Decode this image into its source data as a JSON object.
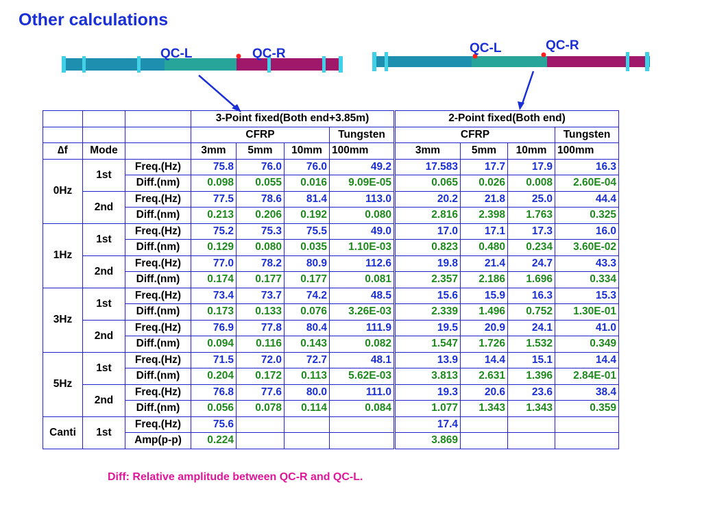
{
  "title": "Other calculations",
  "diagram": {
    "left_labels": [
      "QC-L",
      "QC-R"
    ],
    "right_labels": [
      "QC-L",
      "QC-R"
    ]
  },
  "table": {
    "group_headers": [
      "3-Point fixed(Both end+3.85m)",
      "2-Point fixed(Both end)"
    ],
    "material_headers": [
      "CFRP",
      "Tungsten",
      "CFRP",
      "Tungsten"
    ],
    "col_headers": [
      "∆f",
      "Mode",
      "3mm",
      "5mm",
      "10mm",
      "100mm",
      "3mm",
      "5mm",
      "10mm",
      "100mm"
    ],
    "groups": [
      {
        "df": "0Hz",
        "modes": [
          {
            "mode": "1st",
            "rows": [
              {
                "label": "Freq.(Hz)",
                "kind": "freq",
                "values": [
                  "75.8",
                  "76.0",
                  "76.0",
                  "49.2",
                  "17.583",
                  "17.7",
                  "17.9",
                  "16.3"
                ]
              },
              {
                "label": "Diff.(nm)",
                "kind": "diff",
                "values": [
                  "0.098",
                  "0.055",
                  "0.016",
                  "9.09E-05",
                  "0.065",
                  "0.026",
                  "0.008",
                  "2.60E-04"
                ]
              }
            ]
          },
          {
            "mode": "2nd",
            "rows": [
              {
                "label": "Freq.(Hz)",
                "kind": "freq",
                "values": [
                  "77.5",
                  "78.6",
                  "81.4",
                  "113.0",
                  "20.2",
                  "21.8",
                  "25.0",
                  "44.4"
                ]
              },
              {
                "label": "Diff.(nm)",
                "kind": "diff",
                "values": [
                  "0.213",
                  "0.206",
                  "0.192",
                  "0.080",
                  "2.816",
                  "2.398",
                  "1.763",
                  "0.325"
                ]
              }
            ]
          }
        ]
      },
      {
        "df": "1Hz",
        "modes": [
          {
            "mode": "1st",
            "rows": [
              {
                "label": "Freq.(Hz)",
                "kind": "freq",
                "values": [
                  "75.2",
                  "75.3",
                  "75.5",
                  "49.0",
                  "17.0",
                  "17.1",
                  "17.3",
                  "16.0"
                ]
              },
              {
                "label": "Diff.(nm)",
                "kind": "diff",
                "values": [
                  "0.129",
                  "0.080",
                  "0.035",
                  "1.10E-03",
                  "0.823",
                  "0.480",
                  "0.234",
                  "3.60E-02"
                ]
              }
            ]
          },
          {
            "mode": "2nd",
            "rows": [
              {
                "label": "Freq.(Hz)",
                "kind": "freq",
                "values": [
                  "77.0",
                  "78.2",
                  "80.9",
                  "112.6",
                  "19.8",
                  "21.4",
                  "24.7",
                  "43.3"
                ]
              },
              {
                "label": "Diff.(nm)",
                "kind": "diff",
                "values": [
                  "0.174",
                  "0.177",
                  "0.177",
                  "0.081",
                  "2.357",
                  "2.186",
                  "1.696",
                  "0.334"
                ]
              }
            ]
          }
        ]
      },
      {
        "df": "3Hz",
        "modes": [
          {
            "mode": "1st",
            "rows": [
              {
                "label": "Freq.(Hz)",
                "kind": "freq",
                "values": [
                  "73.4",
                  "73.7",
                  "74.2",
                  "48.5",
                  "15.6",
                  "15.9",
                  "16.3",
                  "15.3"
                ]
              },
              {
                "label": "Diff.(nm)",
                "kind": "diff",
                "values": [
                  "0.173",
                  "0.133",
                  "0.076",
                  "3.26E-03",
                  "2.339",
                  "1.496",
                  "0.752",
                  "1.30E-01"
                ]
              }
            ]
          },
          {
            "mode": "2nd",
            "rows": [
              {
                "label": "Freq.(Hz)",
                "kind": "freq",
                "values": [
                  "76.9",
                  "77.8",
                  "80.4",
                  "111.9",
                  "19.5",
                  "20.9",
                  "24.1",
                  "41.0"
                ]
              },
              {
                "label": "Diff.(nm)",
                "kind": "diff",
                "values": [
                  "0.094",
                  "0.116",
                  "0.143",
                  "0.082",
                  "1.547",
                  "1.726",
                  "1.532",
                  "0.349"
                ]
              }
            ]
          }
        ]
      },
      {
        "df": "5Hz",
        "modes": [
          {
            "mode": "1st",
            "rows": [
              {
                "label": "Freq.(Hz)",
                "kind": "freq",
                "values": [
                  "71.5",
                  "72.0",
                  "72.7",
                  "48.1",
                  "13.9",
                  "14.4",
                  "15.1",
                  "14.4"
                ]
              },
              {
                "label": "Diff.(nm)",
                "kind": "diff",
                "values": [
                  "0.204",
                  "0.172",
                  "0.113",
                  "5.62E-03",
                  "3.813",
                  "2.631",
                  "1.396",
                  "2.84E-01"
                ]
              }
            ]
          },
          {
            "mode": "2nd",
            "rows": [
              {
                "label": "Freq.(Hz)",
                "kind": "freq",
                "values": [
                  "76.8",
                  "77.6",
                  "80.0",
                  "111.0",
                  "19.3",
                  "20.6",
                  "23.6",
                  "38.4"
                ]
              },
              {
                "label": "Diff.(nm)",
                "kind": "diff",
                "values": [
                  "0.056",
                  "0.078",
                  "0.114",
                  "0.084",
                  "1.077",
                  "1.343",
                  "1.343",
                  "0.359"
                ]
              }
            ]
          }
        ]
      },
      {
        "df": "Canti",
        "modes": [
          {
            "mode": "1st",
            "rows": [
              {
                "label": "Freq.(Hz)",
                "kind": "freq",
                "values": [
                  "75.6",
                  "",
                  "",
                  "",
                  "17.4",
                  "",
                  "",
                  ""
                ]
              },
              {
                "label": "Amp(p-p)",
                "kind": "diff",
                "values": [
                  "0.224",
                  "",
                  "",
                  "",
                  "3.869",
                  "",
                  "",
                  ""
                ]
              }
            ]
          }
        ]
      }
    ]
  },
  "note": "Diff: Relative amplitude between QC-R and QC-L.",
  "colors": {
    "blue": "#1a2fd6",
    "green": "#1e8a1e",
    "magenta": "#e0169a",
    "beam_cyan": "#1f8fb0",
    "beam_magenta": "#a0186a"
  }
}
